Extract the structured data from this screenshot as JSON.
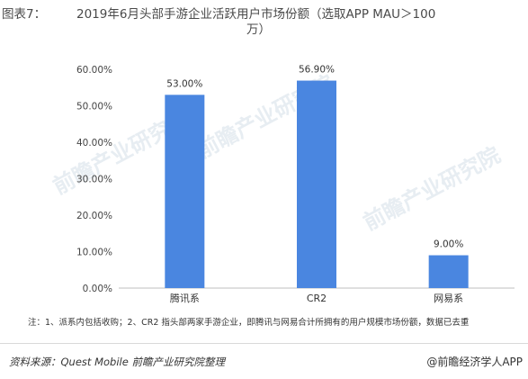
{
  "header": {
    "figure_label": "图表7：",
    "title_line1": "2019年6月头部手游企业活跃用户市场份额（选取APP MAU＞100",
    "title_line2": "万）"
  },
  "chart_data": {
    "type": "bar",
    "categories": [
      "腾讯系",
      "CR2",
      "网易系"
    ],
    "values": [
      53.0,
      56.9,
      9.0
    ],
    "value_labels": [
      "53.00%",
      "56.90%",
      "9.00%"
    ],
    "yticks": [
      "0.00%",
      "10.00%",
      "20.00%",
      "30.00%",
      "40.00%",
      "50.00%",
      "60.00%"
    ],
    "ylim": [
      0,
      60
    ],
    "grid": false,
    "bar_color": "#4a86e0"
  },
  "note": "注：1、派系内包括收购；2、CR2 指头部两家手游企业，即腾讯与网易合计所拥有的用户规模市场份额，数据已去重",
  "footer": {
    "source": "资料来源：Quest Mobile  前瞻产业研究院整理",
    "brand": "@前瞻经济学人APP"
  },
  "watermark": "前瞻产业研究院"
}
